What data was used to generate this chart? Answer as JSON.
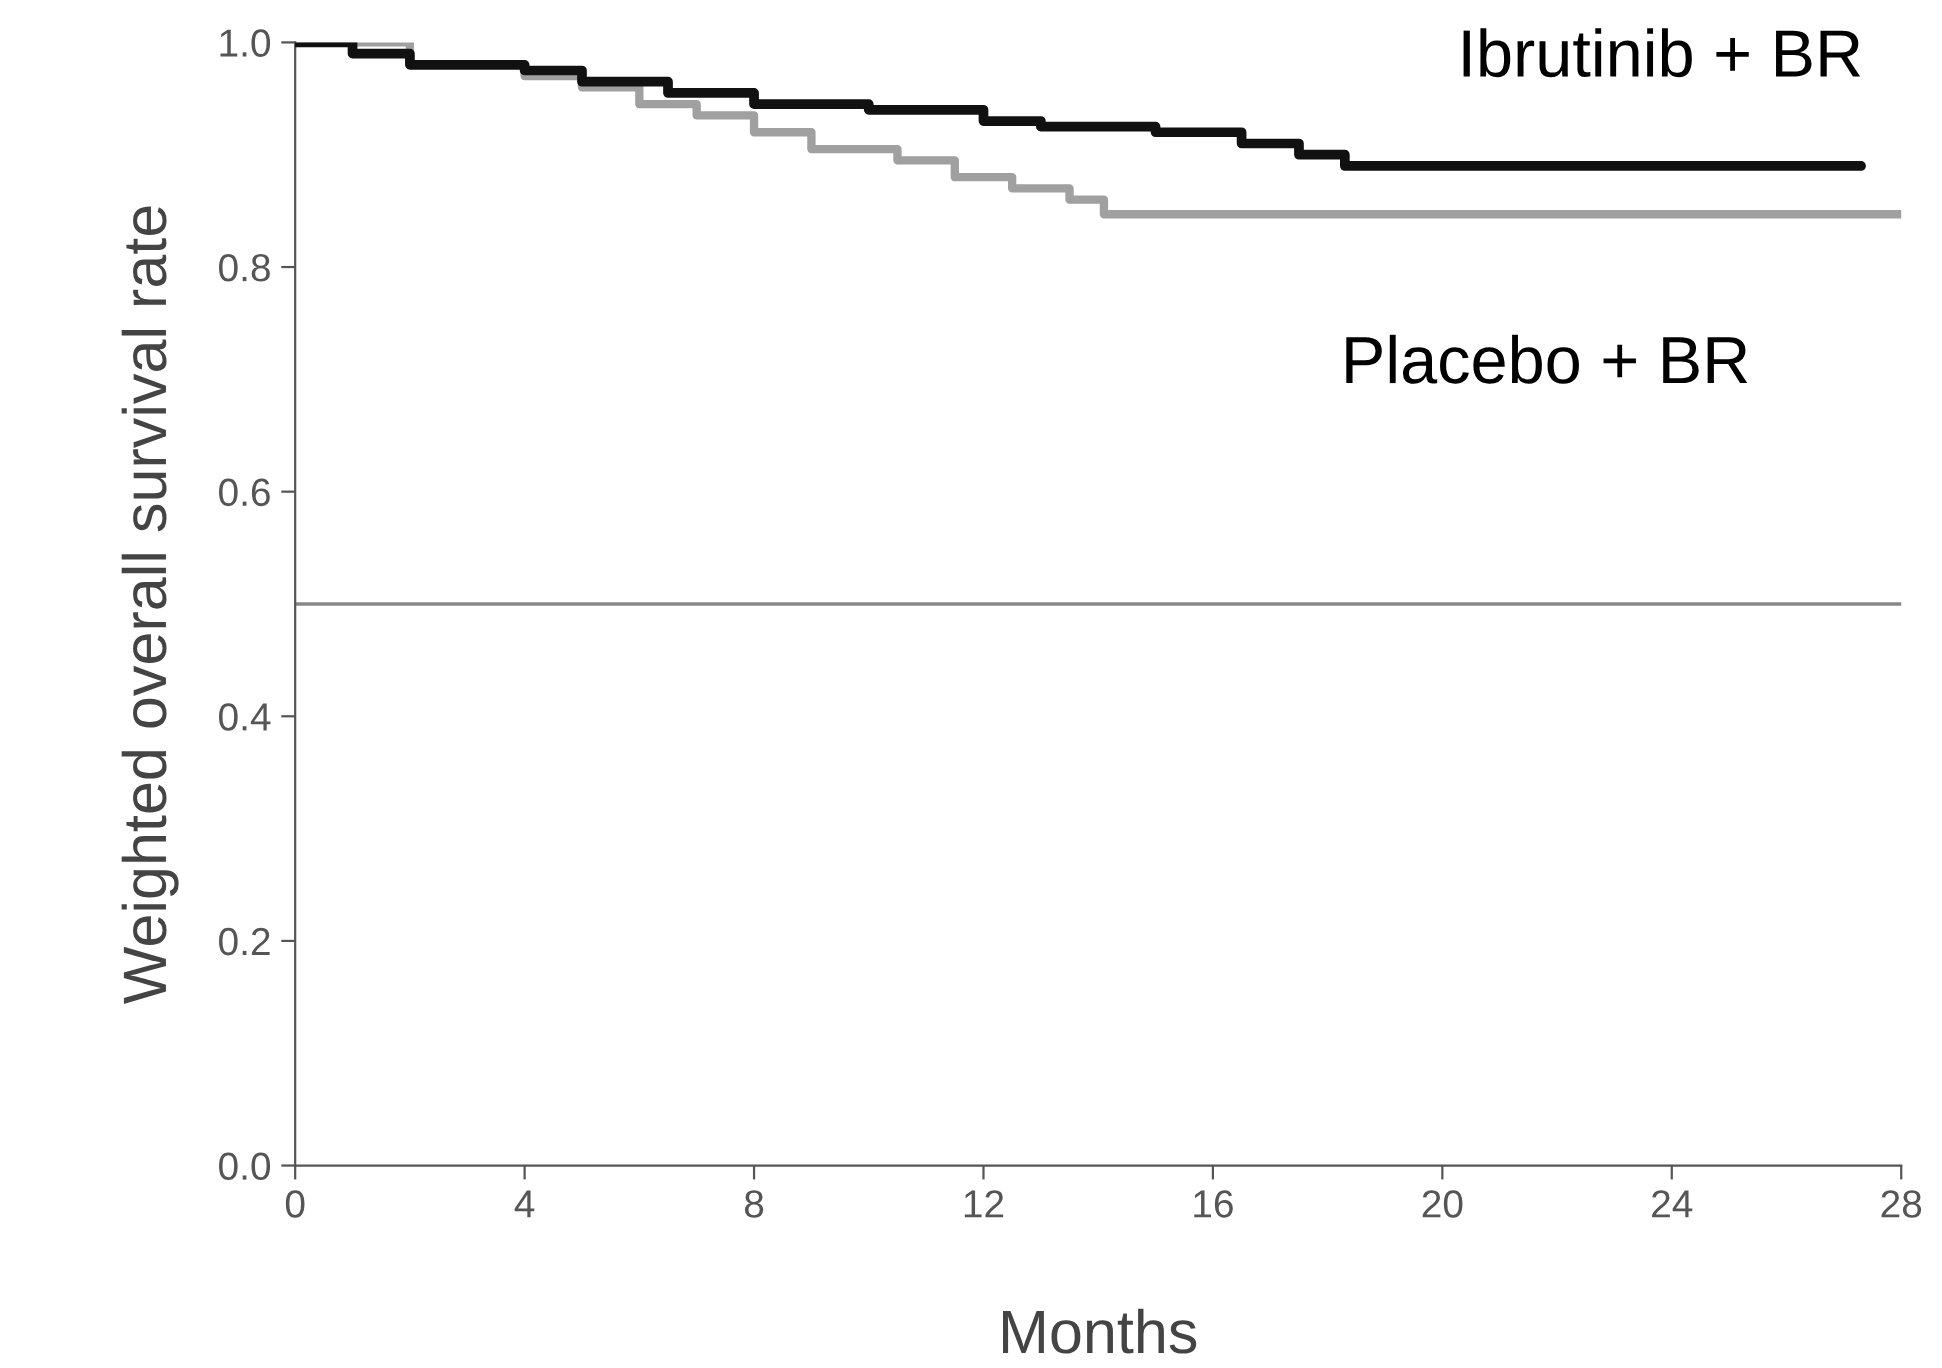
{
  "chart_data": {
    "type": "step",
    "xlabel": "Months",
    "ylabel": "Weighted overall survival rate",
    "xlim": [
      0,
      28
    ],
    "xticks": [
      0,
      4,
      8,
      12,
      16,
      20,
      24,
      28
    ],
    "ylim": [
      0,
      1.0
    ],
    "yticks": [
      {
        "value": 0,
        "label": "0.0"
      },
      {
        "value": 0.2,
        "label": "0.2"
      },
      {
        "value": 0.4,
        "label": "0.4"
      },
      {
        "value": 0.6,
        "label": "0.6"
      },
      {
        "value": 0.8,
        "label": "0.8"
      },
      {
        "value": 1.0,
        "label": "1.0"
      }
    ],
    "grid": false,
    "legend": false,
    "series": [
      {
        "name": "Ibrutinib + BR",
        "color": "#111111",
        "x": [
          0,
          1,
          2,
          4,
          5,
          6.5,
          8,
          10,
          12,
          13,
          15,
          16.5,
          17.5,
          18.3,
          27.3
        ],
        "values": [
          1.0,
          0.99,
          0.98,
          0.975,
          0.965,
          0.955,
          0.945,
          0.94,
          0.93,
          0.925,
          0.92,
          0.91,
          0.9,
          0.89,
          0.89
        ]
      },
      {
        "name": "Placebo + BR",
        "color": "#a0a0a0",
        "x": [
          0,
          2,
          4,
          5,
          6,
          7,
          8,
          9,
          10.5,
          11.5,
          12.5,
          13.5,
          14.1,
          28
        ],
        "values": [
          1.0,
          0.98,
          0.97,
          0.96,
          0.945,
          0.935,
          0.92,
          0.905,
          0.895,
          0.88,
          0.87,
          0.86,
          0.847,
          0.847
        ]
      }
    ],
    "ref_lines": [
      {
        "axis": "y",
        "value": 0.5,
        "color": "#888888"
      }
    ]
  }
}
